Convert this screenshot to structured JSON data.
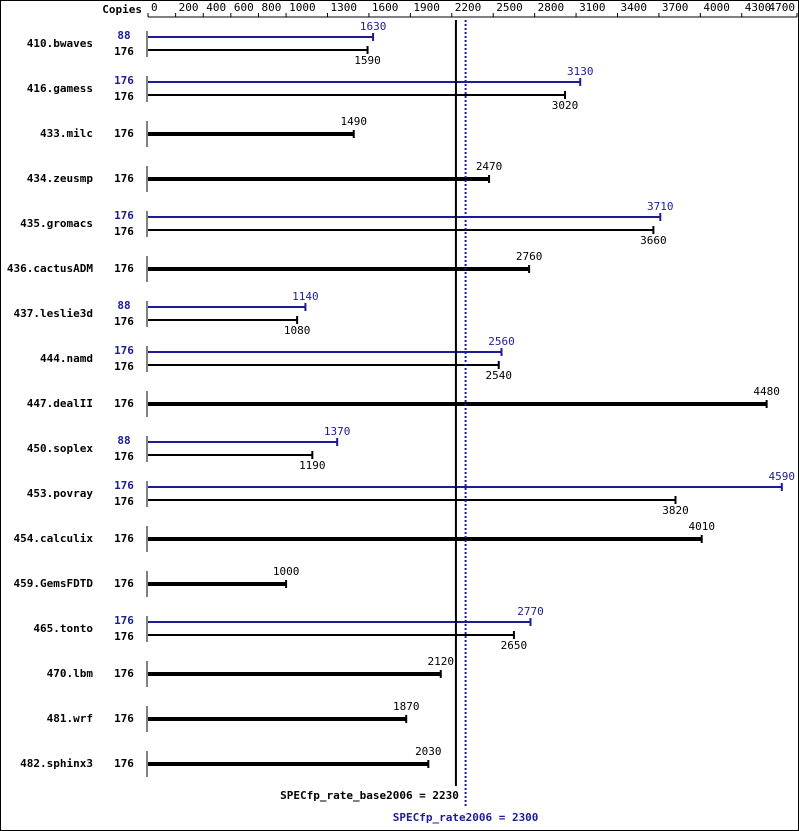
{
  "chart_data": {
    "type": "bar",
    "copies_header": "Copies",
    "xlim": [
      0,
      4700
    ],
    "xticks": [
      0,
      200,
      400,
      600,
      800,
      1000,
      1300,
      1600,
      1900,
      2200,
      2500,
      2800,
      3100,
      3400,
      3700,
      4000,
      4300,
      4700
    ],
    "base_color": "#000000",
    "peak_color": "#1c1c96",
    "benchmarks": [
      {
        "name": "410.bwaves",
        "peak_copies": 88,
        "peak": 1630,
        "base_copies": 176,
        "base": 1590
      },
      {
        "name": "416.gamess",
        "peak_copies": 176,
        "peak": 3130,
        "base_copies": 176,
        "base": 3020
      },
      {
        "name": "433.milc",
        "base_copies": 176,
        "base": 1490
      },
      {
        "name": "434.zeusmp",
        "base_copies": 176,
        "base": 2470
      },
      {
        "name": "435.gromacs",
        "peak_copies": 176,
        "peak": 3710,
        "base_copies": 176,
        "base": 3660
      },
      {
        "name": "436.cactusADM",
        "base_copies": 176,
        "base": 2760
      },
      {
        "name": "437.leslie3d",
        "peak_copies": 88,
        "peak": 1140,
        "base_copies": 176,
        "base": 1080
      },
      {
        "name": "444.namd",
        "peak_copies": 176,
        "peak": 2560,
        "base_copies": 176,
        "base": 2540
      },
      {
        "name": "447.dealII",
        "base_copies": 176,
        "base": 4480
      },
      {
        "name": "450.soplex",
        "peak_copies": 88,
        "peak": 1370,
        "base_copies": 176,
        "base": 1190
      },
      {
        "name": "453.povray",
        "peak_copies": 176,
        "peak": 4590,
        "base_copies": 176,
        "base": 3820
      },
      {
        "name": "454.calculix",
        "base_copies": 176,
        "base": 4010
      },
      {
        "name": "459.GemsFDTD",
        "base_copies": 176,
        "base": 1000
      },
      {
        "name": "465.tonto",
        "peak_copies": 176,
        "peak": 2770,
        "base_copies": 176,
        "base": 2650
      },
      {
        "name": "470.lbm",
        "base_copies": 176,
        "base": 2120
      },
      {
        "name": "481.wrf",
        "base_copies": 176,
        "base": 1870
      },
      {
        "name": "482.sphinx3",
        "base_copies": 176,
        "base": 2030
      }
    ],
    "base_ref": {
      "label": "SPECfp_rate_base2006 = 2230",
      "value": 2230
    },
    "peak_ref": {
      "label": "SPECfp_rate2006 = 2300",
      "value": 2300
    }
  }
}
